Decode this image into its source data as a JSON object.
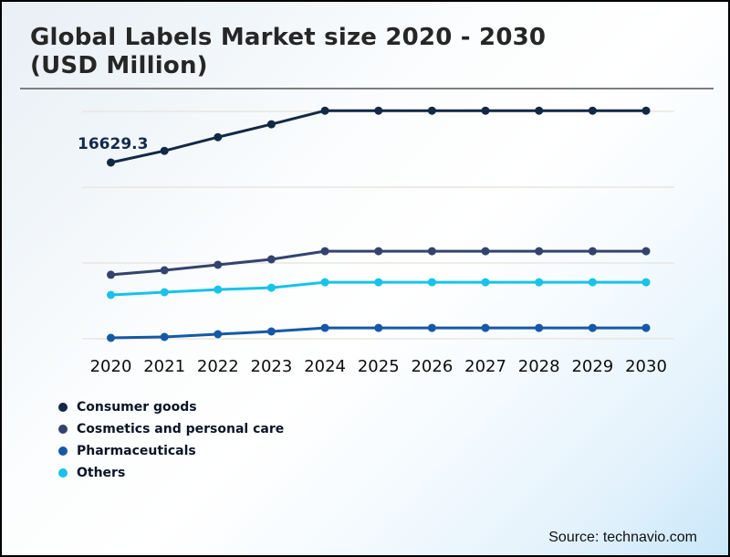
{
  "page": {
    "title": "Global Labels Market size 2020 - 2030 (USD Million)",
    "source": "Source: technavio.com"
  },
  "chart_data": {
    "type": "line",
    "title": "Global Labels Market size 2020 - 2030 (USD Million)",
    "xlabel": "",
    "ylabel": "USD Million",
    "categories": [
      "2020",
      "2021",
      "2022",
      "2023",
      "2024",
      "2025",
      "2026",
      "2027",
      "2028",
      "2029",
      "2030"
    ],
    "series": [
      {
        "name": "Consumer goods",
        "color": "#122945",
        "values": [
          16629.3,
          17400,
          18300,
          19150,
          20050,
          20050,
          20050,
          20050,
          20050,
          20050,
          20050
        ]
      },
      {
        "name": "Cosmetics and personal care",
        "color": "#34436e",
        "values": [
          9220,
          9520,
          9880,
          10240,
          10780,
          10780,
          10780,
          10780,
          10780,
          10780,
          10780
        ]
      },
      {
        "name": "Pharmaceuticals",
        "color": "#1559a6",
        "values": [
          5060,
          5120,
          5300,
          5480,
          5720,
          5720,
          5720,
          5720,
          5720,
          5720,
          5720
        ]
      },
      {
        "name": "Others",
        "color": "#17c3e8",
        "values": [
          7890,
          8070,
          8250,
          8370,
          8730,
          8730,
          8730,
          8730,
          8730,
          8730,
          8730
        ]
      }
    ],
    "annotation": {
      "text": "16629.3",
      "series": "Consumer goods",
      "x": "2020",
      "value": 16629.3
    },
    "gridline_values": [
      20000,
      15000,
      10000,
      5000
    ],
    "ylim": [
      4000,
      21500
    ],
    "grid": "horizontal-only",
    "legend_position": "bottom-left",
    "note_only_first_point_labeled": true,
    "colors": {
      "gridline": "#e9e6e1",
      "title_text": "#262626",
      "axis_text": "#0d0d0d",
      "annotation_text": "#13294e"
    }
  }
}
